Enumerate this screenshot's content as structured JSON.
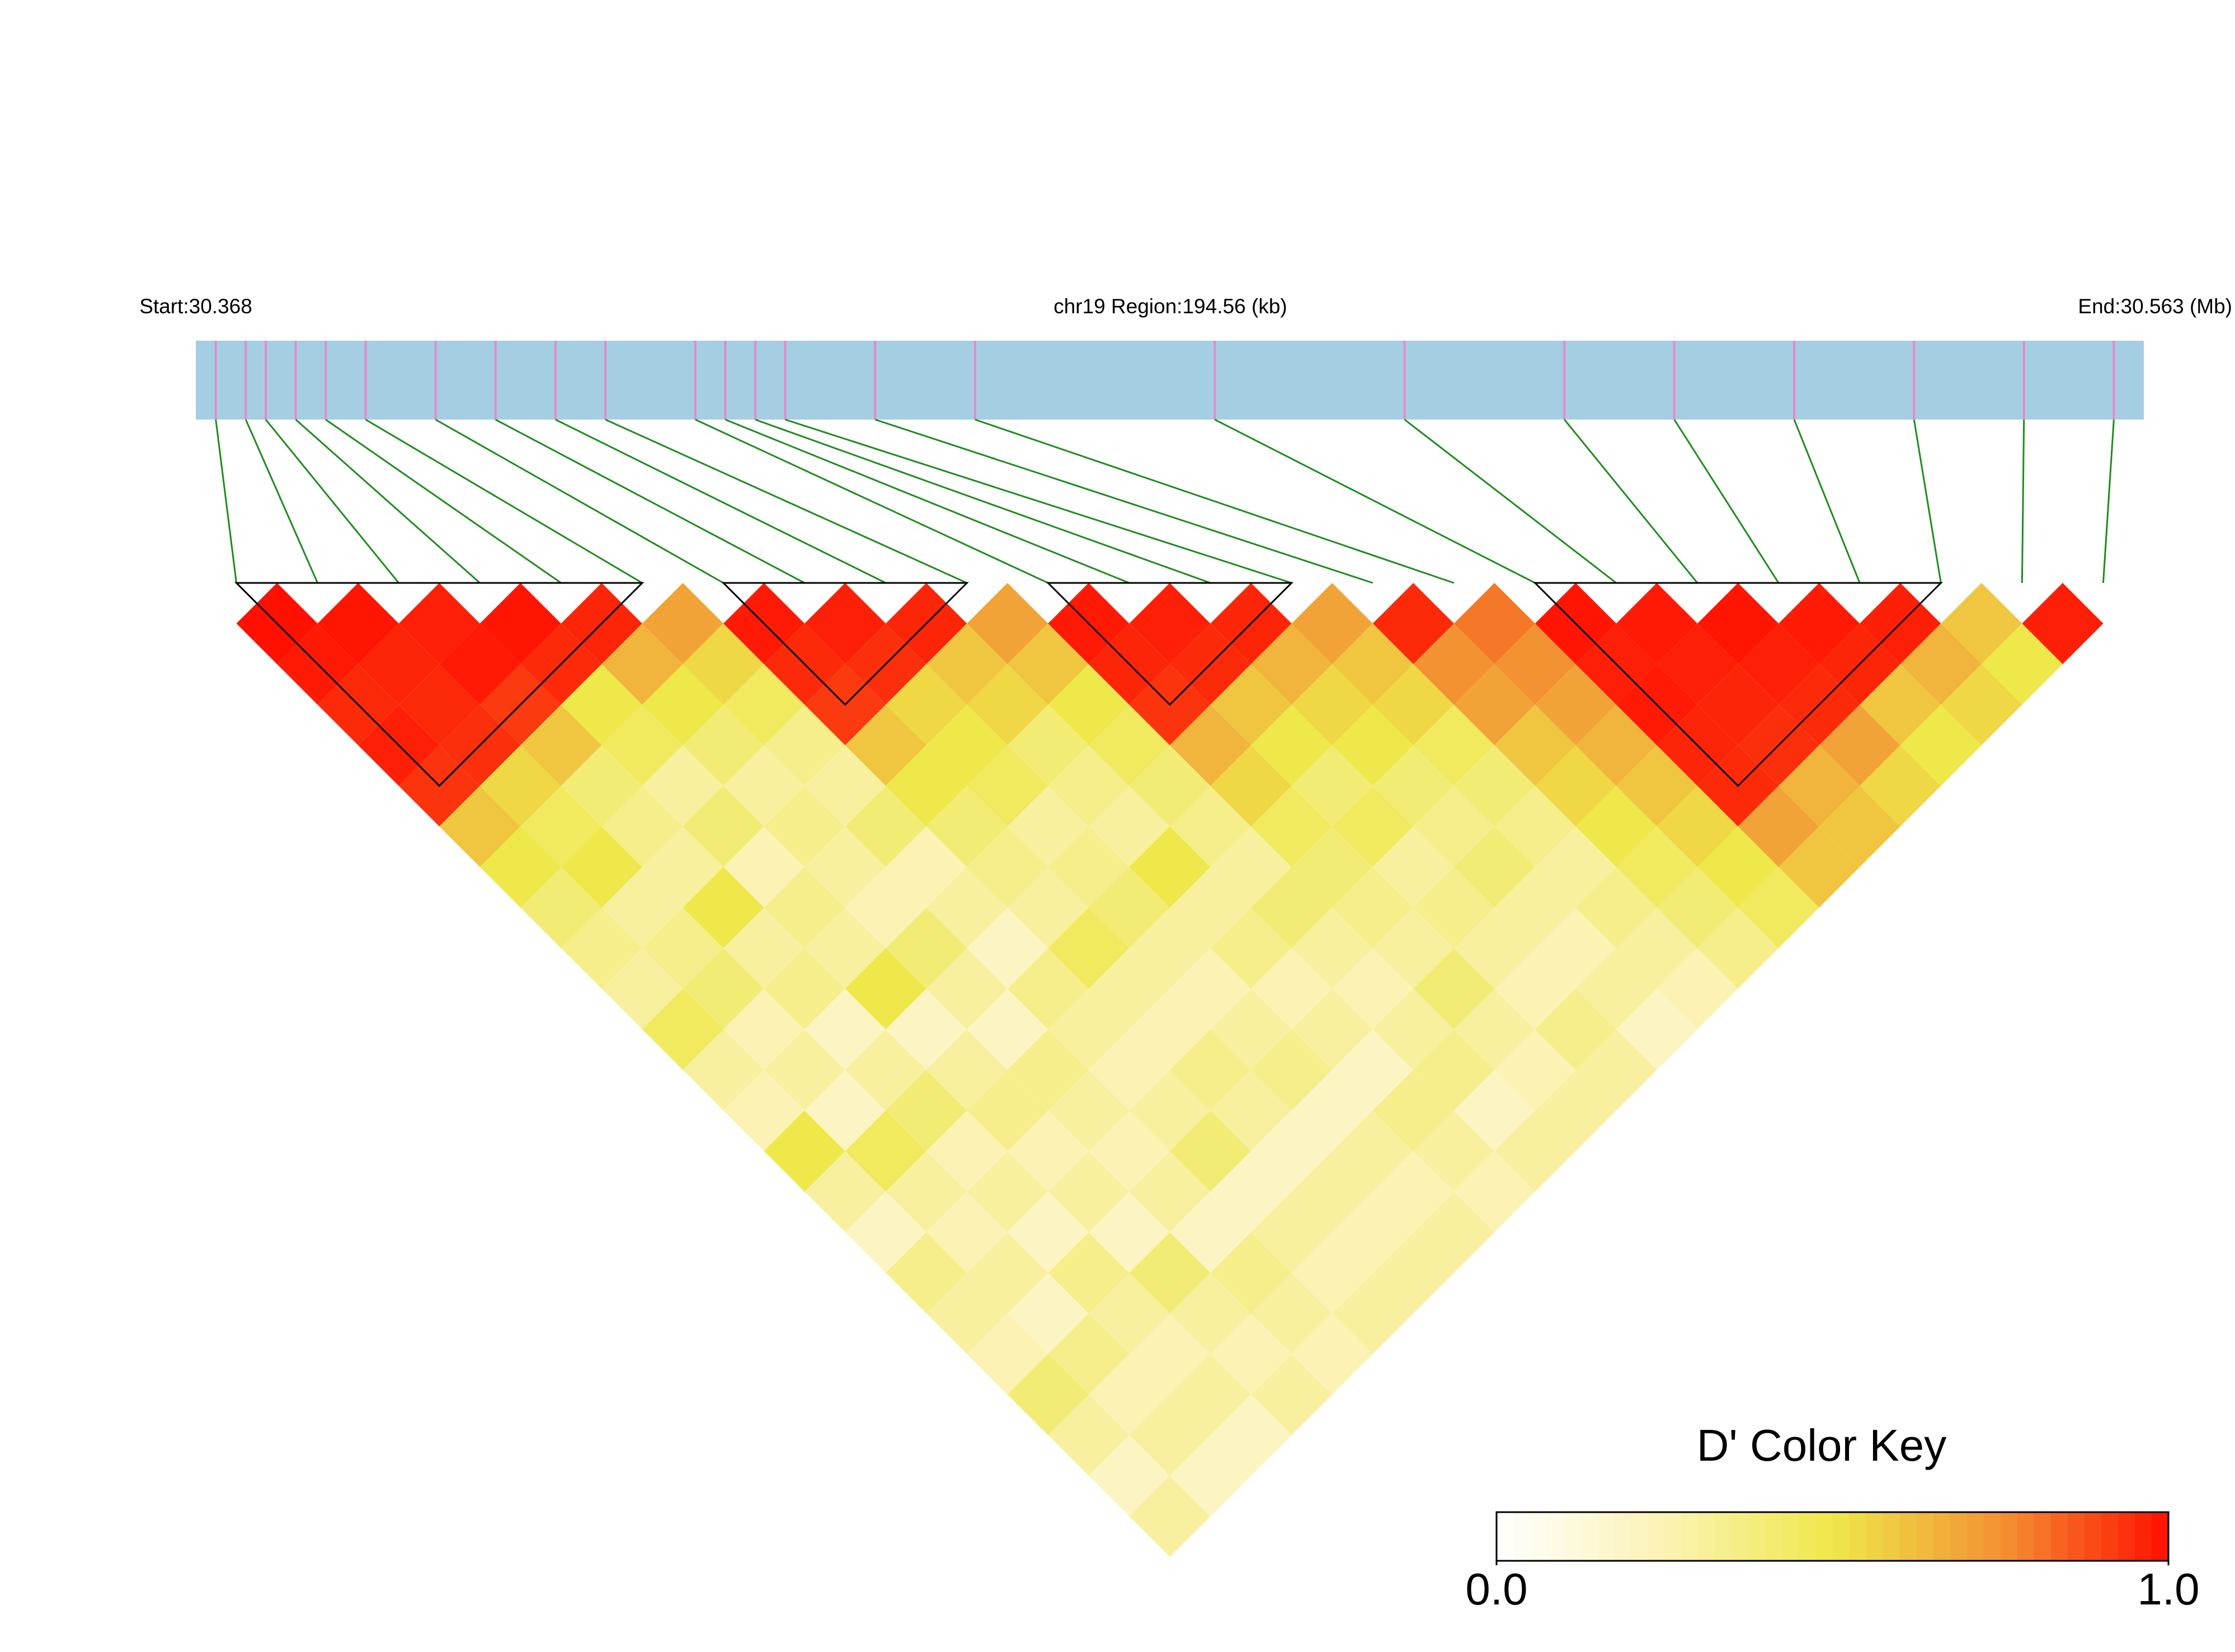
{
  "chart_data": {
    "type": "ld-heatmap",
    "start_label": "Start:30.368",
    "region_label": "chr19 Region:194.56 (kb)",
    "end_label": "End:30.563 (Mb)",
    "xlim": [
      30.368,
      30.563
    ],
    "snp_positions": [
      30.37,
      30.373,
      30.375,
      30.378,
      30.381,
      30.385,
      30.392,
      30.398,
      30.404,
      30.409,
      30.418,
      30.421,
      30.424,
      30.427,
      30.436,
      30.446,
      30.47,
      30.489,
      30.505,
      30.516,
      30.528,
      30.54,
      30.551,
      30.56
    ],
    "ld": [
      [
        1,
        0.98,
        0.95,
        0.97,
        0.93,
        0.6,
        0.5,
        0.4,
        0.35,
        0.3,
        0.45,
        0.3,
        0.25,
        0.5,
        0.3,
        0.2,
        0.35,
        0.3,
        0.25,
        0.4,
        0.3,
        0.2,
        0.3
      ],
      [
        0.99,
        0.96,
        0.95,
        0.94,
        0.55,
        0.45,
        0.5,
        0.3,
        0.35,
        0.4,
        0.25,
        0.3,
        0.2,
        0.45,
        0.3,
        0.25,
        0.3,
        0.2,
        0.35,
        0.25,
        0.3,
        0.2
      ],
      [
        0.97,
        0.98,
        0.92,
        0.6,
        0.4,
        0.35,
        0.3,
        0.5,
        0.3,
        0.35,
        0.2,
        0.3,
        0.4,
        0.25,
        0.3,
        0.2,
        0.35,
        0.3,
        0.25,
        0.3,
        0.2
      ],
      [
        0.99,
        0.95,
        0.5,
        0.45,
        0.3,
        0.4,
        0.25,
        0.35,
        0.3,
        0.5,
        0.2,
        0.3,
        0.35,
        0.25,
        0.3,
        0.2,
        0.4,
        0.3,
        0.25,
        0.3
      ],
      [
        0.96,
        0.65,
        0.5,
        0.4,
        0.3,
        0.35,
        0.3,
        0.25,
        0.4,
        0.3,
        0.2,
        0.35,
        0.3,
        0.25,
        0.3,
        0.2,
        0.35,
        0.3,
        0.25
      ],
      [
        0.7,
        0.55,
        0.45,
        0.35,
        0.3,
        0.4,
        0.25,
        0.3,
        0.2,
        0.35,
        0.3,
        0.25,
        0.3,
        0.4,
        0.2,
        0.3,
        0.25,
        0.3
      ],
      [
        0.98,
        0.95,
        0.92,
        0.6,
        0.5,
        0.4,
        0.35,
        0.3,
        0.45,
        0.3,
        0.25,
        0.35,
        0.3,
        0.2,
        0.3,
        0.25,
        0.3
      ],
      [
        0.97,
        0.94,
        0.55,
        0.5,
        0.45,
        0.3,
        0.35,
        0.4,
        0.3,
        0.25,
        0.3,
        0.35,
        0.2,
        0.3,
        0.25,
        0.3
      ],
      [
        0.96,
        0.6,
        0.55,
        0.4,
        0.35,
        0.3,
        0.5,
        0.3,
        0.35,
        0.25,
        0.3,
        0.2,
        0.35,
        0.3,
        0.25
      ],
      [
        0.7,
        0.6,
        0.5,
        0.45,
        0.4,
        0.35,
        0.3,
        0.4,
        0.3,
        0.25,
        0.3,
        0.35,
        0.2,
        0.3
      ],
      [
        0.98,
        0.96,
        0.93,
        0.65,
        0.55,
        0.45,
        0.4,
        0.35,
        0.3,
        0.4,
        0.3,
        0.25,
        0.3
      ],
      [
        0.97,
        0.95,
        0.6,
        0.5,
        0.4,
        0.45,
        0.3,
        0.35,
        0.3,
        0.25,
        0.35,
        0.3
      ],
      [
        0.96,
        0.65,
        0.55,
        0.5,
        0.4,
        0.35,
        0.4,
        0.3,
        0.25,
        0.3,
        0.2
      ],
      [
        0.7,
        0.6,
        0.55,
        0.45,
        0.4,
        0.35,
        0.3,
        0.35,
        0.3,
        0.25
      ],
      [
        0.95,
        0.75,
        0.7,
        0.6,
        0.55,
        0.5,
        0.45,
        0.4,
        0.35
      ],
      [
        0.8,
        0.75,
        0.7,
        0.65,
        0.6,
        0.55,
        0.5,
        0.45
      ],
      [
        0.99,
        0.97,
        0.98,
        0.96,
        0.95,
        0.7,
        0.6
      ],
      [
        0.98,
        0.97,
        0.96,
        0.94,
        0.65,
        0.6
      ],
      [
        0.99,
        0.97,
        0.95,
        0.7,
        0.55
      ],
      [
        0.98,
        0.96,
        0.6,
        0.5
      ],
      [
        0.97,
        0.65,
        0.55
      ],
      [
        0.6,
        0.5
      ],
      [
        0.97
      ]
    ],
    "blocks": [
      [
        0,
        5
      ],
      [
        6,
        9
      ],
      [
        10,
        13
      ],
      [
        16,
        21
      ]
    ],
    "bar_color": "#a6cee3",
    "snp_line_color": "#e38cc4",
    "connector_color": "#1e8c1e",
    "block_color": "#000000",
    "color_key": {
      "title": "D' Color Key",
      "lim": [
        0,
        1
      ],
      "ticks": [
        {
          "value": 0,
          "label": "0.0"
        },
        {
          "value": 1,
          "label": "1.0"
        }
      ],
      "colors": [
        "#ffffff",
        "#fbf2b4",
        "#eee84a",
        "#f39232",
        "#ff1000"
      ]
    }
  }
}
